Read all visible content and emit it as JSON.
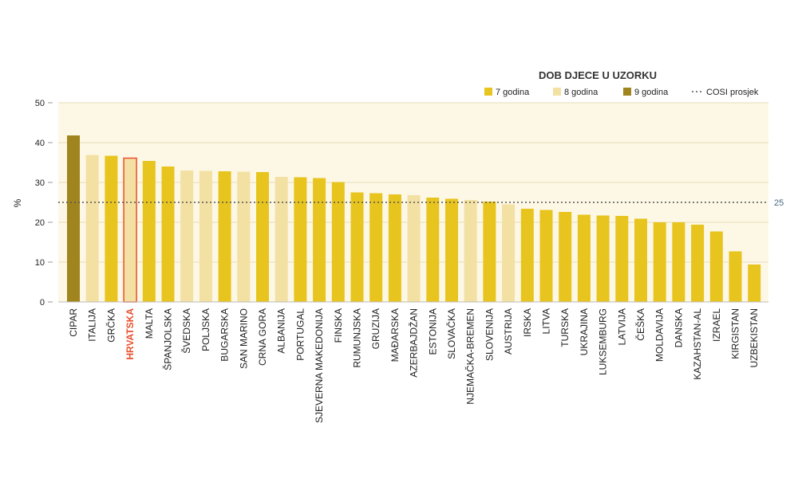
{
  "chart_data": {
    "type": "bar",
    "ylabel": "%",
    "ylim": [
      0,
      50
    ],
    "yticks": [
      0,
      10,
      20,
      30,
      40,
      50
    ],
    "grid": true,
    "legend_title": "DOB DJECE U UZORKU",
    "legend": [
      {
        "key": "7",
        "label": "7 godina",
        "color": "#e8c41f"
      },
      {
        "key": "8",
        "label": "8 godina",
        "color": "#f3e0a3"
      },
      {
        "key": "9",
        "label": "9 godina",
        "color": "#a0841e"
      },
      {
        "key": "avg",
        "label": "COSI prosjek",
        "color": "#555555"
      }
    ],
    "average": {
      "value": 25,
      "label": "25"
    },
    "highlight": "HRVATSKA",
    "highlight_color": "#e8502f",
    "categories": [
      "CIPAR",
      "ITALIJA",
      "GRČKA",
      "HRVATSKA",
      "MALTA",
      "ŠPANJOLSKA",
      "ŠVEDSKA",
      "POLJSKA",
      "BUGARSKA",
      "SAN MARINO",
      "CRNA GORA",
      "ALBANIJA",
      "PORTUGAL",
      "SJEVERNA MAKEDONIJA",
      "FINSKA",
      "RUMUNJSKA",
      "GRUZIJA",
      "MAĐARSKA",
      "AZERBAJDŽAN",
      "ESTONIJA",
      "SLOVAČKA",
      "NJEMAČKA-BREMEN",
      "SLOVENIJA",
      "AUSTRIJA",
      "IRSKA",
      "LITVA",
      "TURSKA",
      "UKRAJINA",
      "LUKSEMBURG",
      "LATVIJA",
      "ČEŠKA",
      "MOLDAVIJA",
      "DANSKA",
      "KAZAHSTAN-AL",
      "IZRAEL",
      "KIRGISTAN",
      "UZBEKISTAN"
    ],
    "values": [
      41.8,
      36.9,
      36.7,
      36.1,
      35.4,
      34.0,
      33.0,
      32.9,
      32.8,
      32.7,
      32.6,
      31.4,
      31.3,
      31.1,
      30.1,
      27.5,
      27.3,
      27.0,
      26.8,
      26.2,
      25.9,
      25.6,
      25.2,
      24.5,
      23.4,
      23.1,
      22.6,
      21.9,
      21.7,
      21.6,
      20.9,
      20.0,
      20.0,
      19.4,
      17.7,
      12.7,
      9.4
    ],
    "age_group": [
      "9",
      "8",
      "7",
      "8",
      "7",
      "7",
      "8",
      "8",
      "7",
      "8",
      "7",
      "8",
      "7",
      "7",
      "7",
      "7",
      "7",
      "7",
      "8",
      "7",
      "7",
      "8",
      "7",
      "8",
      "7",
      "7",
      "7",
      "7",
      "7",
      "7",
      "7",
      "7",
      "7",
      "7",
      "7",
      "7",
      "7"
    ]
  }
}
